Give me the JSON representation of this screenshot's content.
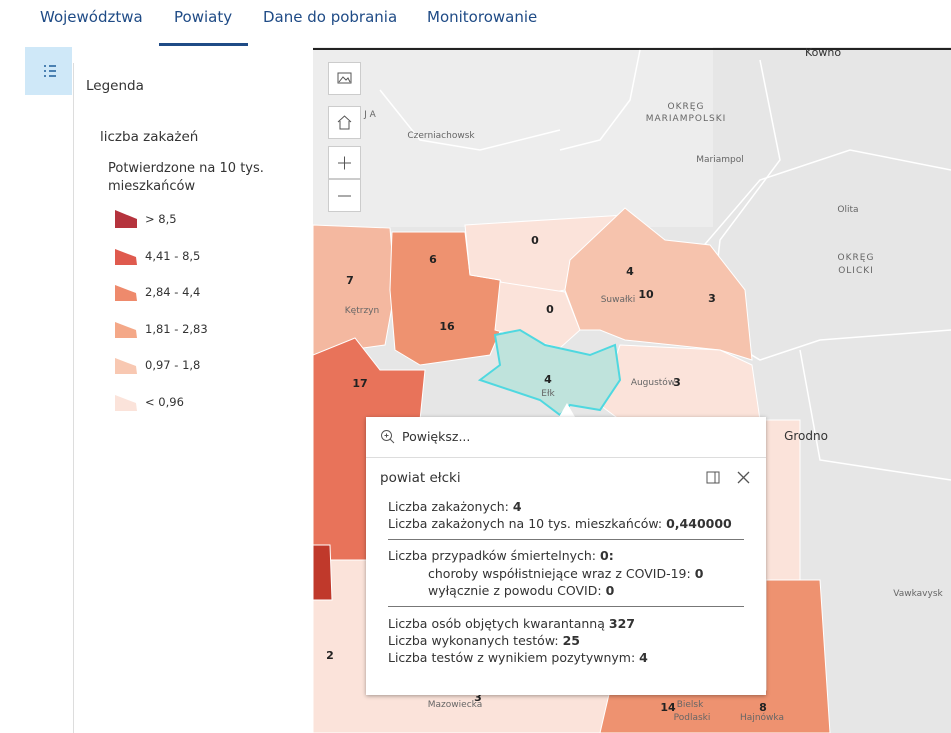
{
  "tabs": [
    "Województwa",
    "Powiaty",
    "Dane do pobrania",
    "Monitorowanie"
  ],
  "active_tab": 1,
  "legend": {
    "title": "Legenda",
    "layer": "liczba zakażeń",
    "subtitle": "Potwierdzone na 10 tys. mieszkańców",
    "classes": [
      {
        "label": "> 8,5",
        "color": "#b5333d"
      },
      {
        "label": "4,41 - 8,5",
        "color": "#df5a4e"
      },
      {
        "label": "2,84 - 4,4",
        "color": "#ee8a6c"
      },
      {
        "label": "1,81 - 2,83",
        "color": "#f4a888"
      },
      {
        "label": "0,97 - 1,8",
        "color": "#f8c8b2"
      },
      {
        "label": "< 0,96",
        "color": "#fbe3da"
      }
    ]
  },
  "map": {
    "counts": [
      7,
      6,
      0,
      0,
      4,
      10,
      3,
      16,
      17,
      4,
      3,
      2,
      3,
      14,
      8
    ],
    "places": [
      "Kowno",
      "OKRĘG",
      "MARIAMPOLSKI",
      "Czerniachowsk",
      "Mariampol",
      "Olita",
      "OKRĘG",
      "OLICKI",
      "Kętrzyn",
      "Suwałki",
      "Augustów",
      "Grodno",
      "Vawkavysk",
      "Ełk",
      "Mazowiecka",
      "Bielsk",
      "Podlaski",
      "Hajnówka",
      "J A"
    ]
  },
  "popup": {
    "search": "Powiększ...",
    "title": "powiat ełcki",
    "groups": [
      [
        {
          "label": "Liczba zakażonych:",
          "value": 4
        },
        {
          "label": "Liczba zakażonych na 10 tys. mieszkańców:",
          "value": "0,440000"
        }
      ],
      [
        {
          "label": "Liczba przypadków śmiertelnych:",
          "value": "0:"
        },
        {
          "label": "choroby współistniejące wraz z COVID-19:",
          "value": 0,
          "indent": true
        },
        {
          "label": "wyłącznie z powodu COVID:",
          "value": 0,
          "indent": true
        }
      ],
      [
        {
          "label": "Liczba osób objętych kwarantanną",
          "value": 327
        },
        {
          "label": "Liczba wykonanych testów:",
          "value": 25
        },
        {
          "label": "Liczba testów z wynikiem pozytywnym:",
          "value": 4
        }
      ]
    ]
  }
}
